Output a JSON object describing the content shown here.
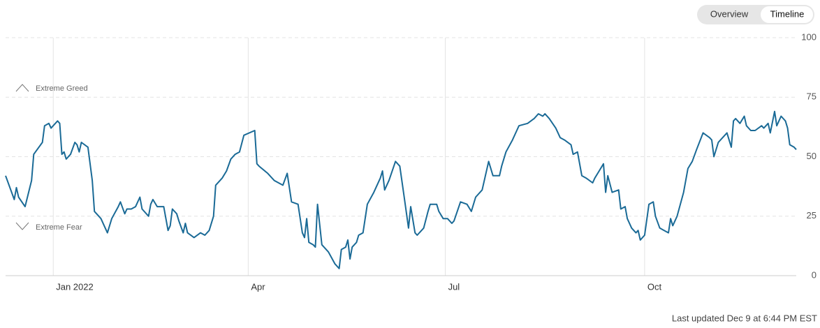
{
  "view_toggle": {
    "options": [
      "Overview",
      "Timeline"
    ],
    "selected": 1
  },
  "chart_data": {
    "type": "line",
    "color": "#1a6a96",
    "annotations": [
      "Extreme Greed",
      "Extreme Fear"
    ],
    "footnote": "Last updated Dec 9 at 6:44 PM EST",
    "xlim": [
      -22,
      343
    ],
    "xticks": [
      {
        "value": 0,
        "label": "Jan 2022"
      },
      {
        "value": 90,
        "label": "Apr"
      },
      {
        "value": 181,
        "label": "Jul"
      },
      {
        "value": 273,
        "label": "Oct"
      }
    ],
    "ylim": [
      0,
      100
    ],
    "yticks": [
      0,
      25,
      50,
      75,
      100
    ],
    "grid": true,
    "x": [
      -22,
      -18,
      -17,
      -16,
      -13,
      -10,
      -9,
      -5,
      -4,
      -2,
      -1,
      2,
      3,
      4,
      5,
      6,
      8,
      10,
      11,
      12,
      13,
      16,
      18,
      19,
      22,
      24,
      25,
      27,
      30,
      31,
      33,
      34,
      36,
      38,
      40,
      41,
      44,
      45,
      46,
      48,
      51,
      53,
      54,
      55,
      57,
      58,
      60,
      61,
      62,
      65,
      68,
      70,
      72,
      74,
      75,
      78,
      80,
      82,
      84,
      86,
      88,
      93,
      94,
      95,
      99,
      102,
      106,
      108,
      110,
      113,
      115,
      116,
      117,
      118,
      120,
      121,
      122,
      124,
      127,
      130,
      132,
      133,
      135,
      136,
      137,
      138,
      140,
      141,
      143,
      145,
      148,
      151,
      152,
      153,
      155,
      158,
      160,
      162,
      164,
      165,
      167,
      168,
      170,
      171,
      173,
      174,
      177,
      178,
      180,
      182,
      184,
      185,
      188,
      191,
      193,
      195,
      198,
      201,
      203,
      206,
      207,
      209,
      212,
      214,
      215,
      219,
      222,
      224,
      226,
      227,
      229,
      232,
      234,
      236,
      239,
      240,
      242,
      244,
      246,
      249,
      250,
      252,
      254,
      255,
      256,
      258,
      261,
      262,
      264,
      265,
      267,
      269,
      270,
      271,
      273,
      275,
      277,
      278,
      280,
      282,
      284,
      285,
      286,
      288,
      291,
      293,
      295,
      297,
      300,
      303,
      304,
      305,
      307,
      309,
      311,
      313,
      314,
      315,
      317,
      319,
      320,
      322,
      324,
      327,
      328,
      330,
      331,
      333,
      334,
      336,
      338,
      339,
      340,
      342,
      343
    ],
    "values": [
      42,
      32,
      37,
      33,
      29,
      40,
      51,
      56,
      63,
      64,
      62,
      65,
      64,
      51,
      52,
      49,
      51,
      56,
      55,
      52,
      56,
      54,
      40,
      27,
      24,
      20,
      18,
      24,
      29,
      31,
      26,
      28,
      28,
      29,
      33,
      28,
      25,
      30,
      32,
      29,
      29,
      19,
      21,
      28,
      26,
      23,
      18,
      22,
      18,
      16,
      18,
      17,
      19,
      25,
      38,
      41,
      44,
      49,
      51,
      52,
      59,
      61,
      47,
      46,
      43,
      40,
      38,
      43,
      31,
      30,
      18,
      16,
      24,
      14,
      13,
      12,
      30,
      13,
      10,
      5,
      3,
      11,
      12,
      15,
      7,
      12,
      14,
      17,
      18,
      30,
      35,
      41,
      44,
      36,
      40,
      48,
      46,
      33,
      20,
      29,
      18,
      17,
      19,
      20,
      27,
      30,
      30,
      27,
      24,
      24,
      22,
      23,
      31,
      30,
      27,
      33,
      36,
      48,
      42,
      42,
      46,
      52,
      57,
      61,
      63,
      64,
      66,
      68,
      67,
      68,
      66,
      62,
      58,
      57,
      55,
      51,
      52,
      42,
      41,
      39,
      41,
      44,
      47,
      35,
      42,
      35,
      36,
      28,
      29,
      24,
      20,
      18,
      19,
      15,
      17,
      30,
      31,
      25,
      20,
      19,
      18,
      24,
      21,
      25,
      35,
      45,
      48,
      53,
      60,
      58,
      57,
      50,
      56,
      58,
      60,
      54,
      65,
      66,
      64,
      67,
      63,
      61,
      61,
      63,
      62,
      64,
      60,
      69,
      63,
      67,
      65,
      62,
      55,
      54,
      53
    ]
  }
}
